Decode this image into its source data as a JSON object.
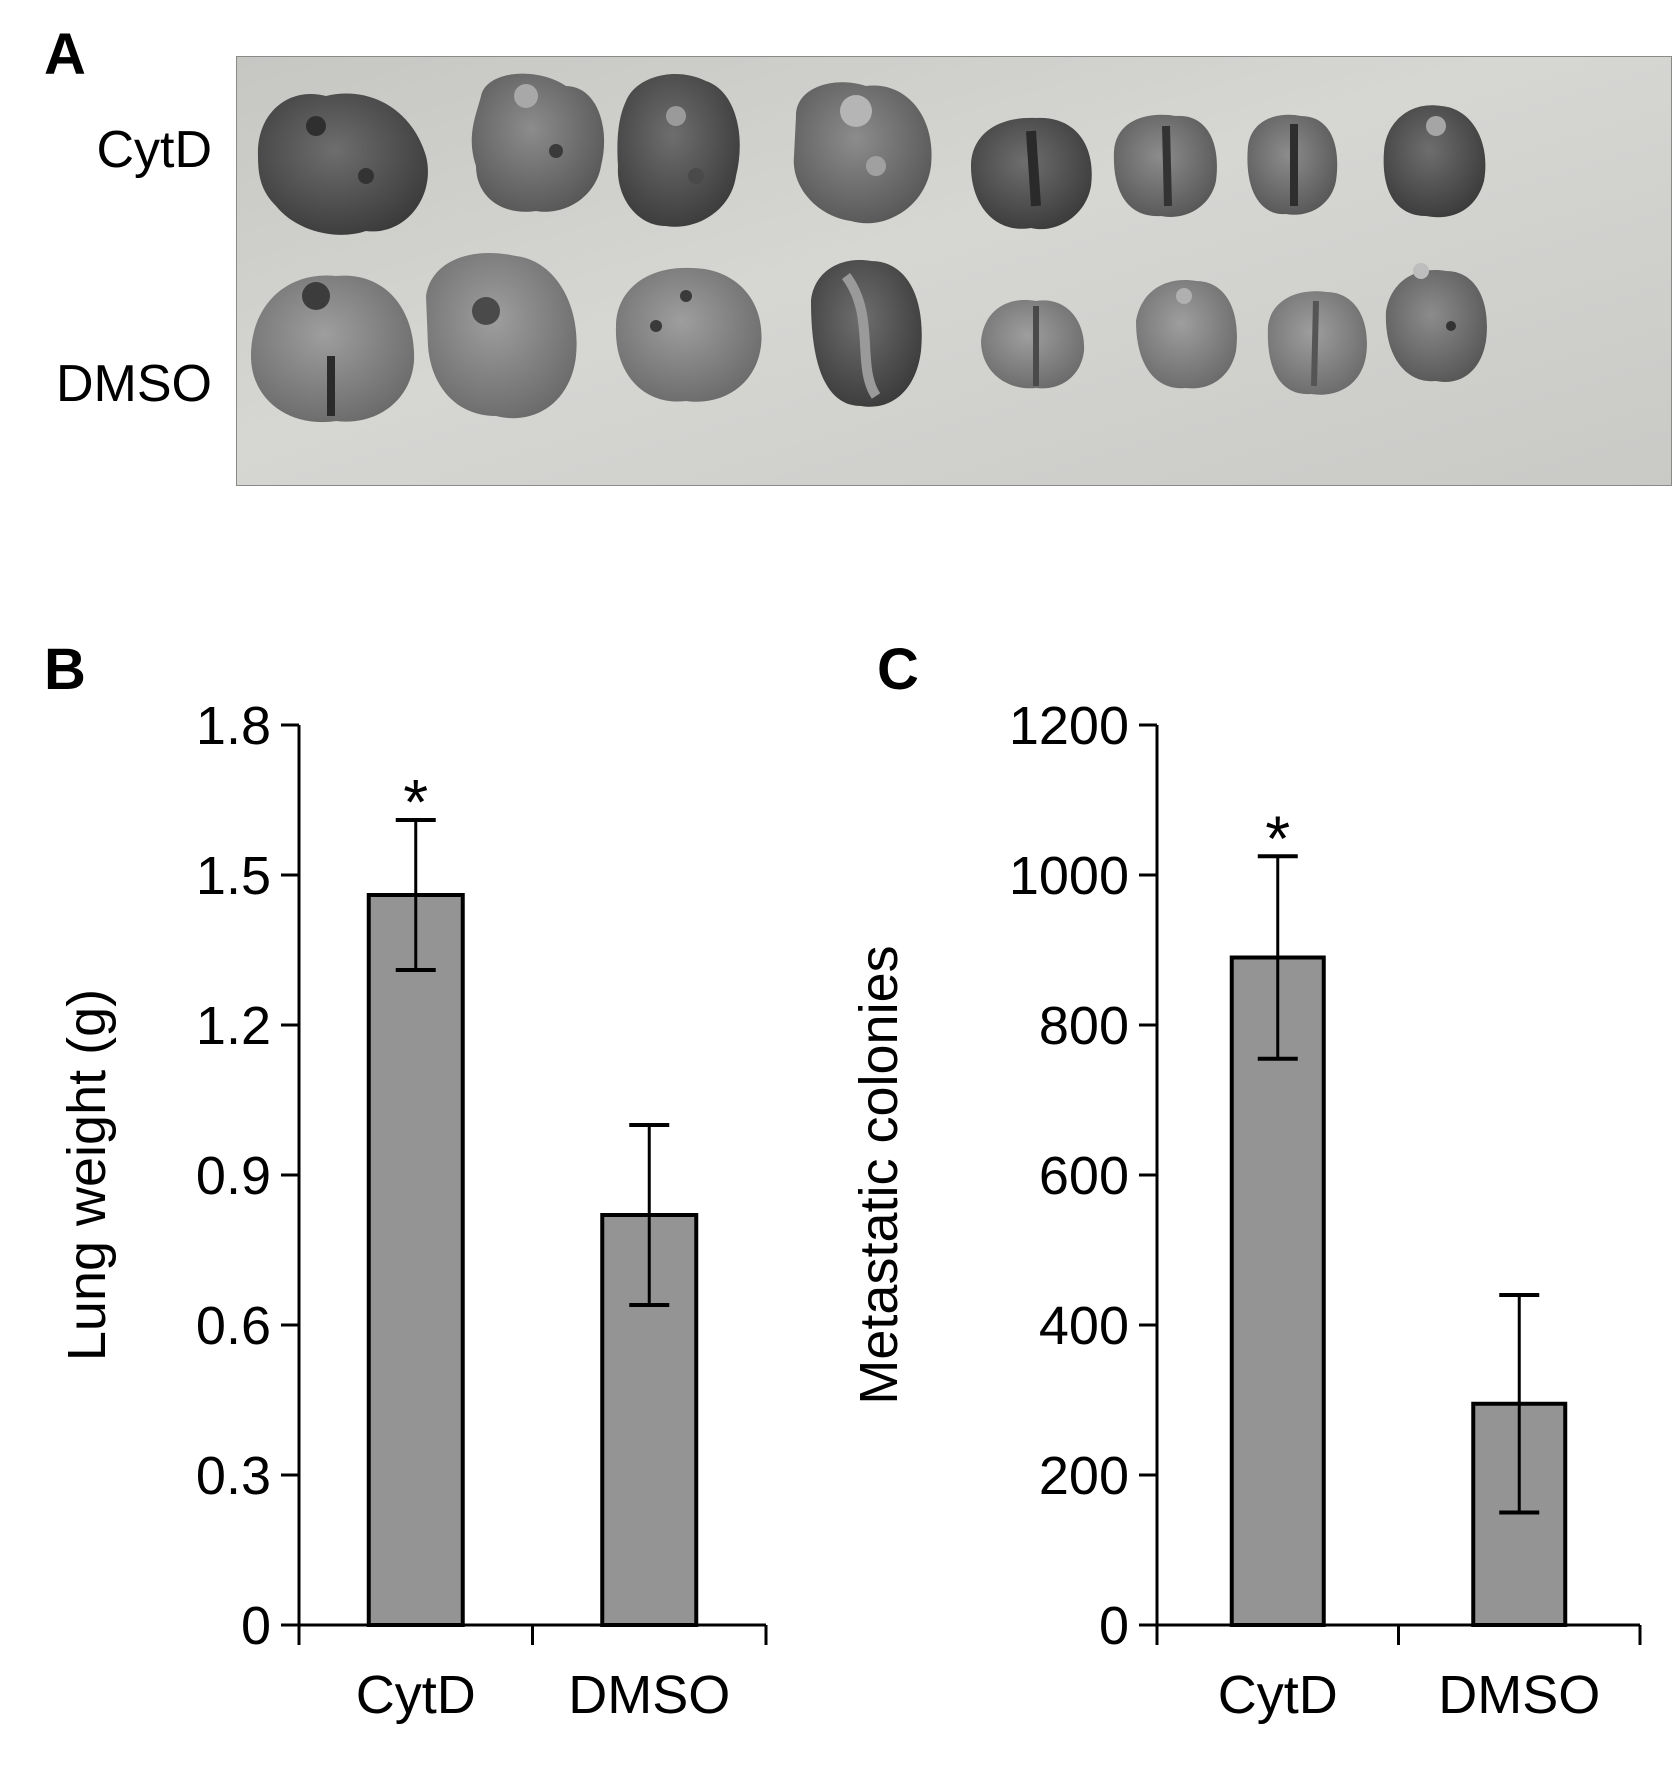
{
  "panel_a": {
    "label": "A",
    "rows": [
      "CytD",
      "DMSO"
    ]
  },
  "chart_data": [
    {
      "panel": "B",
      "type": "bar",
      "categories": [
        "CytD",
        "DMSO"
      ],
      "values": [
        1.46,
        0.82
      ],
      "errors": [
        0.15,
        0.18
      ],
      "annotations": [
        "*",
        ""
      ],
      "ylabel": "Lung weight  (g)",
      "ylim": [
        0,
        1.8
      ],
      "yticks": [
        "0",
        "0.3",
        "0.6",
        "0.9",
        "1.2",
        "1.5",
        "1.8"
      ],
      "bar_color": "#949494",
      "grid": false,
      "legend": "none"
    },
    {
      "panel": "C",
      "type": "bar",
      "categories": [
        "CytD",
        "DMSO"
      ],
      "values": [
        890,
        295
      ],
      "errors": [
        135,
        145
      ],
      "annotations": [
        "*",
        ""
      ],
      "ylabel": "Metastatic colonies",
      "ylim": [
        0,
        1200
      ],
      "yticks": [
        "0",
        "200",
        "400",
        "600",
        "800",
        "1000",
        "1200"
      ],
      "bar_color": "#949494",
      "grid": false,
      "legend": "none"
    }
  ]
}
